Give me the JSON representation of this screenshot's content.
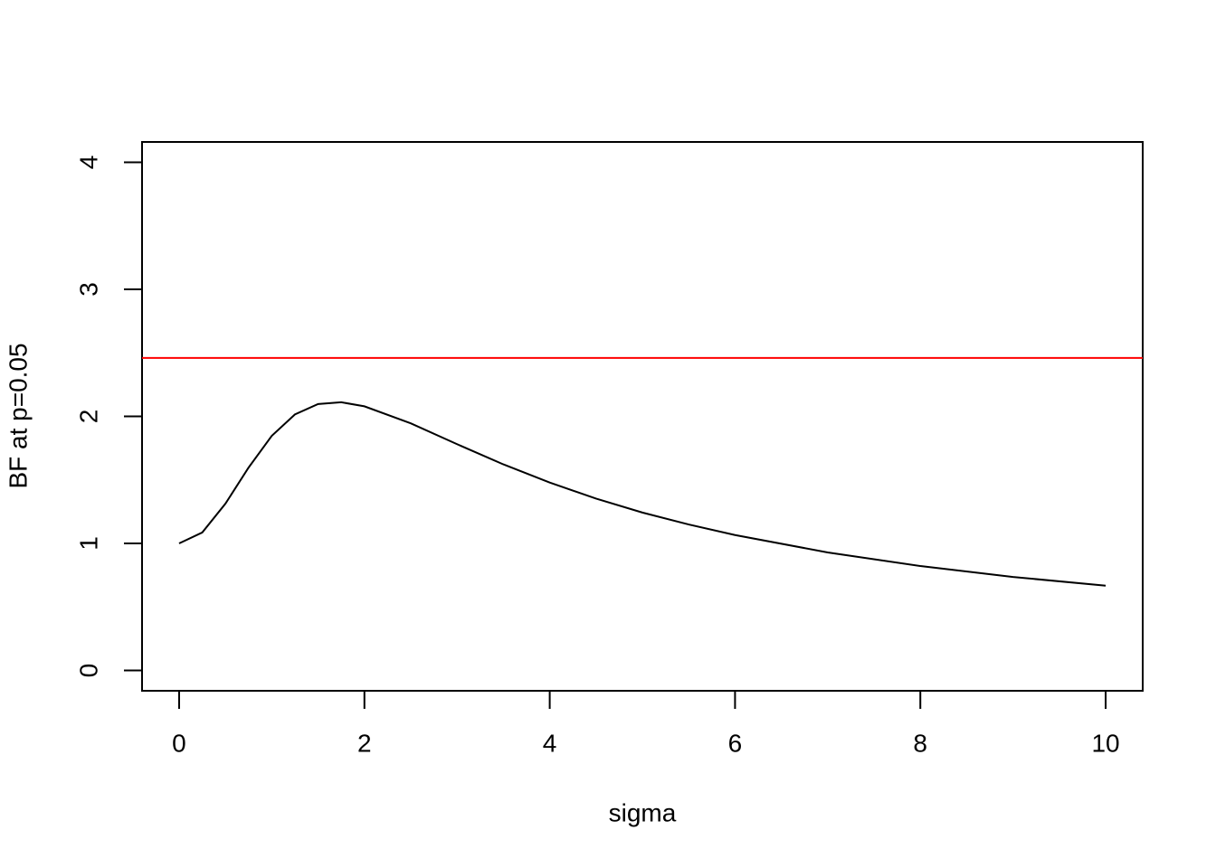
{
  "chart_data": {
    "type": "line",
    "x_label": "sigma",
    "y_label": "BF at p=0.05",
    "x": [
      0,
      0.25,
      0.5,
      0.75,
      1,
      1.25,
      1.5,
      1.75,
      2,
      2.5,
      3,
      3.5,
      4,
      4.5,
      5,
      5.5,
      6,
      7,
      8,
      9,
      10
    ],
    "series": [
      {
        "color": "#000000",
        "values": [
          1,
          1.086,
          1.313,
          1.597,
          1.847,
          2.015,
          2.097,
          2.111,
          2.079,
          1.945,
          1.781,
          1.622,
          1.479,
          1.353,
          1.243,
          1.149,
          1.066,
          0.929,
          0.822,
          0.736,
          0.667
        ]
      }
    ],
    "hline": {
      "value": 2.46,
      "color": "#ff0000"
    },
    "xlim": [
      -0.4,
      10.4
    ],
    "xticks": [
      0,
      2,
      4,
      6,
      8,
      10
    ],
    "ylim": [
      -0.16,
      4.16
    ],
    "yticks": [
      0,
      1,
      2,
      3,
      4
    ],
    "grid": false
  }
}
